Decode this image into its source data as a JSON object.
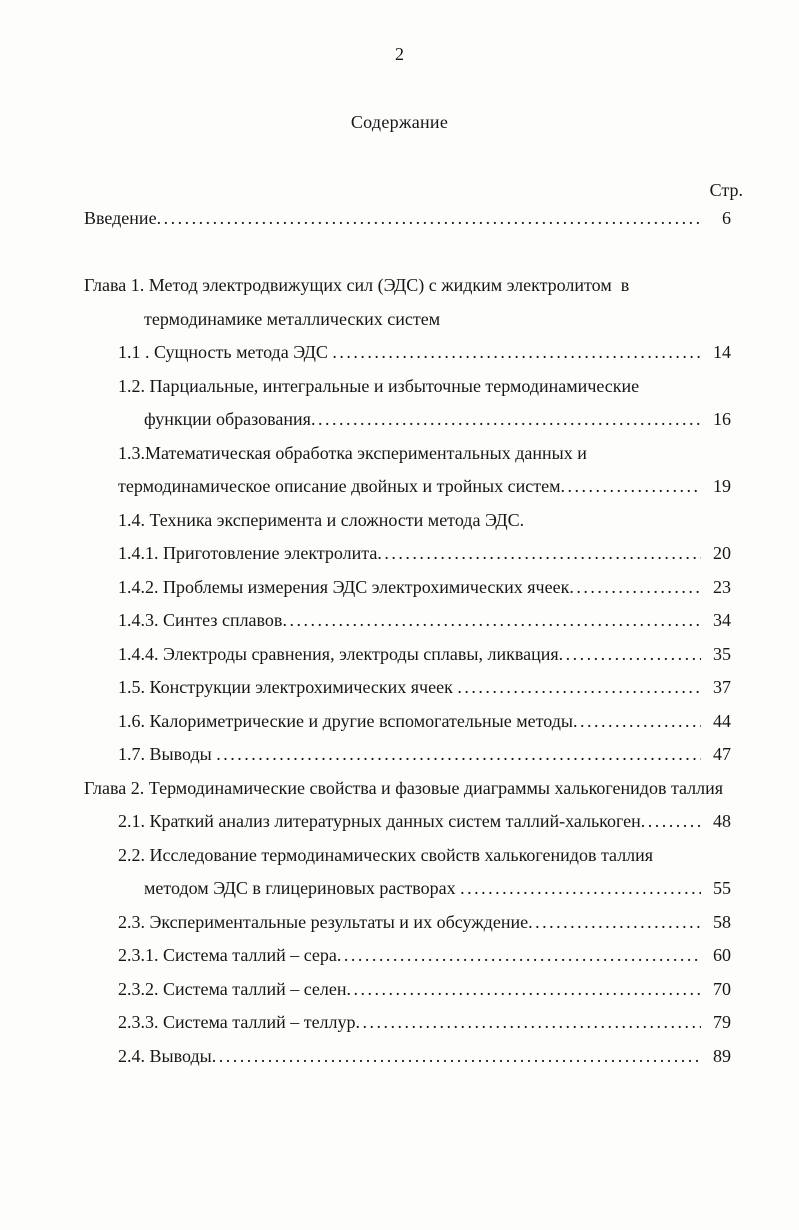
{
  "page": {
    "number": "2",
    "title": "Содержание",
    "column_header": "Стр."
  },
  "toc": [
    {
      "indent": 0,
      "text": "Введение",
      "leader": true,
      "page": "6"
    },
    {
      "indent": 0,
      "gap_before": true,
      "text": "Глава 1. Метод электродвижущих сил (ЭДС) с жидким электролитом  в",
      "leader": false,
      "page": ""
    },
    {
      "indent": 2,
      "text": "термодинамике металлических систем",
      "leader": false,
      "page": ""
    },
    {
      "indent": 1,
      "text": "1.1 . Сущность метода ЭДС ",
      "leader": true,
      "page": "14"
    },
    {
      "indent": 1,
      "text": "1.2. Парциальные, интегральные и избыточные термодинамические",
      "leader": false,
      "page": ""
    },
    {
      "indent": 2,
      "text": "функции образования",
      "leader": true,
      "page": "16"
    },
    {
      "indent": 1,
      "text": "1.3.Математическая обработка экспериментальных данных и",
      "leader": false,
      "page": ""
    },
    {
      "indent": 1,
      "text": "термодинамическое описание двойных и тройных систем",
      "leader": true,
      "page": "19"
    },
    {
      "indent": 1,
      "text": "1.4. Техника эксперимента и сложности метода ЭДС.",
      "leader": false,
      "page": ""
    },
    {
      "indent": 1,
      "text": "1.4.1. Приготовление электролита",
      "leader": true,
      "page": "20"
    },
    {
      "indent": 1,
      "text": "1.4.2. Проблемы измерения ЭДС электрохимических ячеек",
      "leader": true,
      "page": "23"
    },
    {
      "indent": 1,
      "text": "1.4.3. Синтез сплавов",
      "leader": true,
      "page": "34"
    },
    {
      "indent": 1,
      "text": "1.4.4. Электроды сравнения, электроды сплавы, ликвация",
      "leader": true,
      "page": "35"
    },
    {
      "indent": 1,
      "text": "1.5. Конструкции электрохимических ячеек ",
      "leader": true,
      "page": "37"
    },
    {
      "indent": 1,
      "text": "1.6. Калориметрические и другие вспомогательные методы",
      "leader": true,
      "page": "44"
    },
    {
      "indent": 1,
      "text": "1.7. Выводы ",
      "leader": true,
      "page": "47"
    },
    {
      "indent": 0,
      "text": "Глава 2. Термодинамические свойства и фазовые диаграммы халькогенидов таллия",
      "leader": false,
      "page": ""
    },
    {
      "indent": 1,
      "text": "2.1. Краткий анализ литературных данных систем таллий-халькоген",
      "leader": true,
      "page": "48"
    },
    {
      "indent": 1,
      "text": "2.2. Исследование термодинамических свойств халькогенидов таллия",
      "leader": false,
      "page": ""
    },
    {
      "indent": 2,
      "text": "методом ЭДС в глицериновых растворах ",
      "leader": true,
      "page": "55"
    },
    {
      "indent": 1,
      "text": "2.3. Экспериментальные результаты и их обсуждение",
      "leader": true,
      "page": "58"
    },
    {
      "indent": 1,
      "text": "2.3.1. Система таллий – сера",
      "leader": true,
      "page": "60"
    },
    {
      "indent": 1,
      "text": "2.3.2. Система таллий – селен",
      "leader": true,
      "page": "70"
    },
    {
      "indent": 1,
      "text": "2.3.3. Система таллий – теллур",
      "leader": true,
      "page": "79"
    },
    {
      "indent": 1,
      "text": "2.4. Выводы",
      "leader": true,
      "page": "89"
    }
  ]
}
